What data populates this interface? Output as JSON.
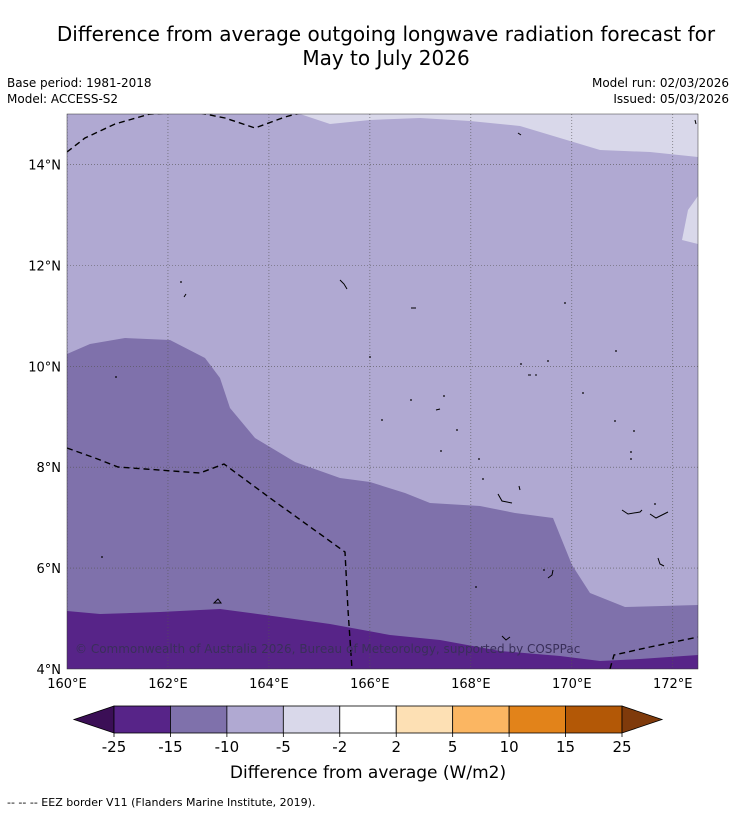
{
  "title_line1": "Difference from average outgoing longwave radiation forecast for",
  "title_line2": "May to July 2026",
  "base_period": "Base period: 1981-2018",
  "model": "Model: ACCESS-S2",
  "model_run": "Model run: 02/03/2026",
  "issued": "Issued: 05/03/2026",
  "copyright": "© Commonwealth of Australia 2026, Bureau of Meteorology, supported by COSPPac",
  "map": {
    "lon_range": [
      160,
      172.5
    ],
    "lat_range": [
      4,
      15
    ],
    "x_ticks": [
      "160°E",
      "162°E",
      "164°E",
      "166°E",
      "168°E",
      "170°E",
      "172°E"
    ],
    "y_ticks": [
      "4°N",
      "6°N",
      "8°N",
      "10°N",
      "12°N",
      "14°N"
    ]
  },
  "colorbar": {
    "label": "Difference from average (W/m2)",
    "tick_labels": [
      "-25",
      "-15",
      "-10",
      "-5",
      "-2",
      "2",
      "5",
      "10",
      "15",
      "25"
    ],
    "colors": {
      "below_min": "#3b0f56",
      "bins": [
        "#572488",
        "#7f71ab",
        "#b0a9d2",
        "#d9d8ea",
        "#ffffff",
        "#fde0b4",
        "#fbb662",
        "#e2831a",
        "#b35806"
      ],
      "above_max": "#7f3a0b"
    }
  },
  "footnote": "--  --  -- EEZ border V11 (Flanders Marine Institute, 2019)."
}
